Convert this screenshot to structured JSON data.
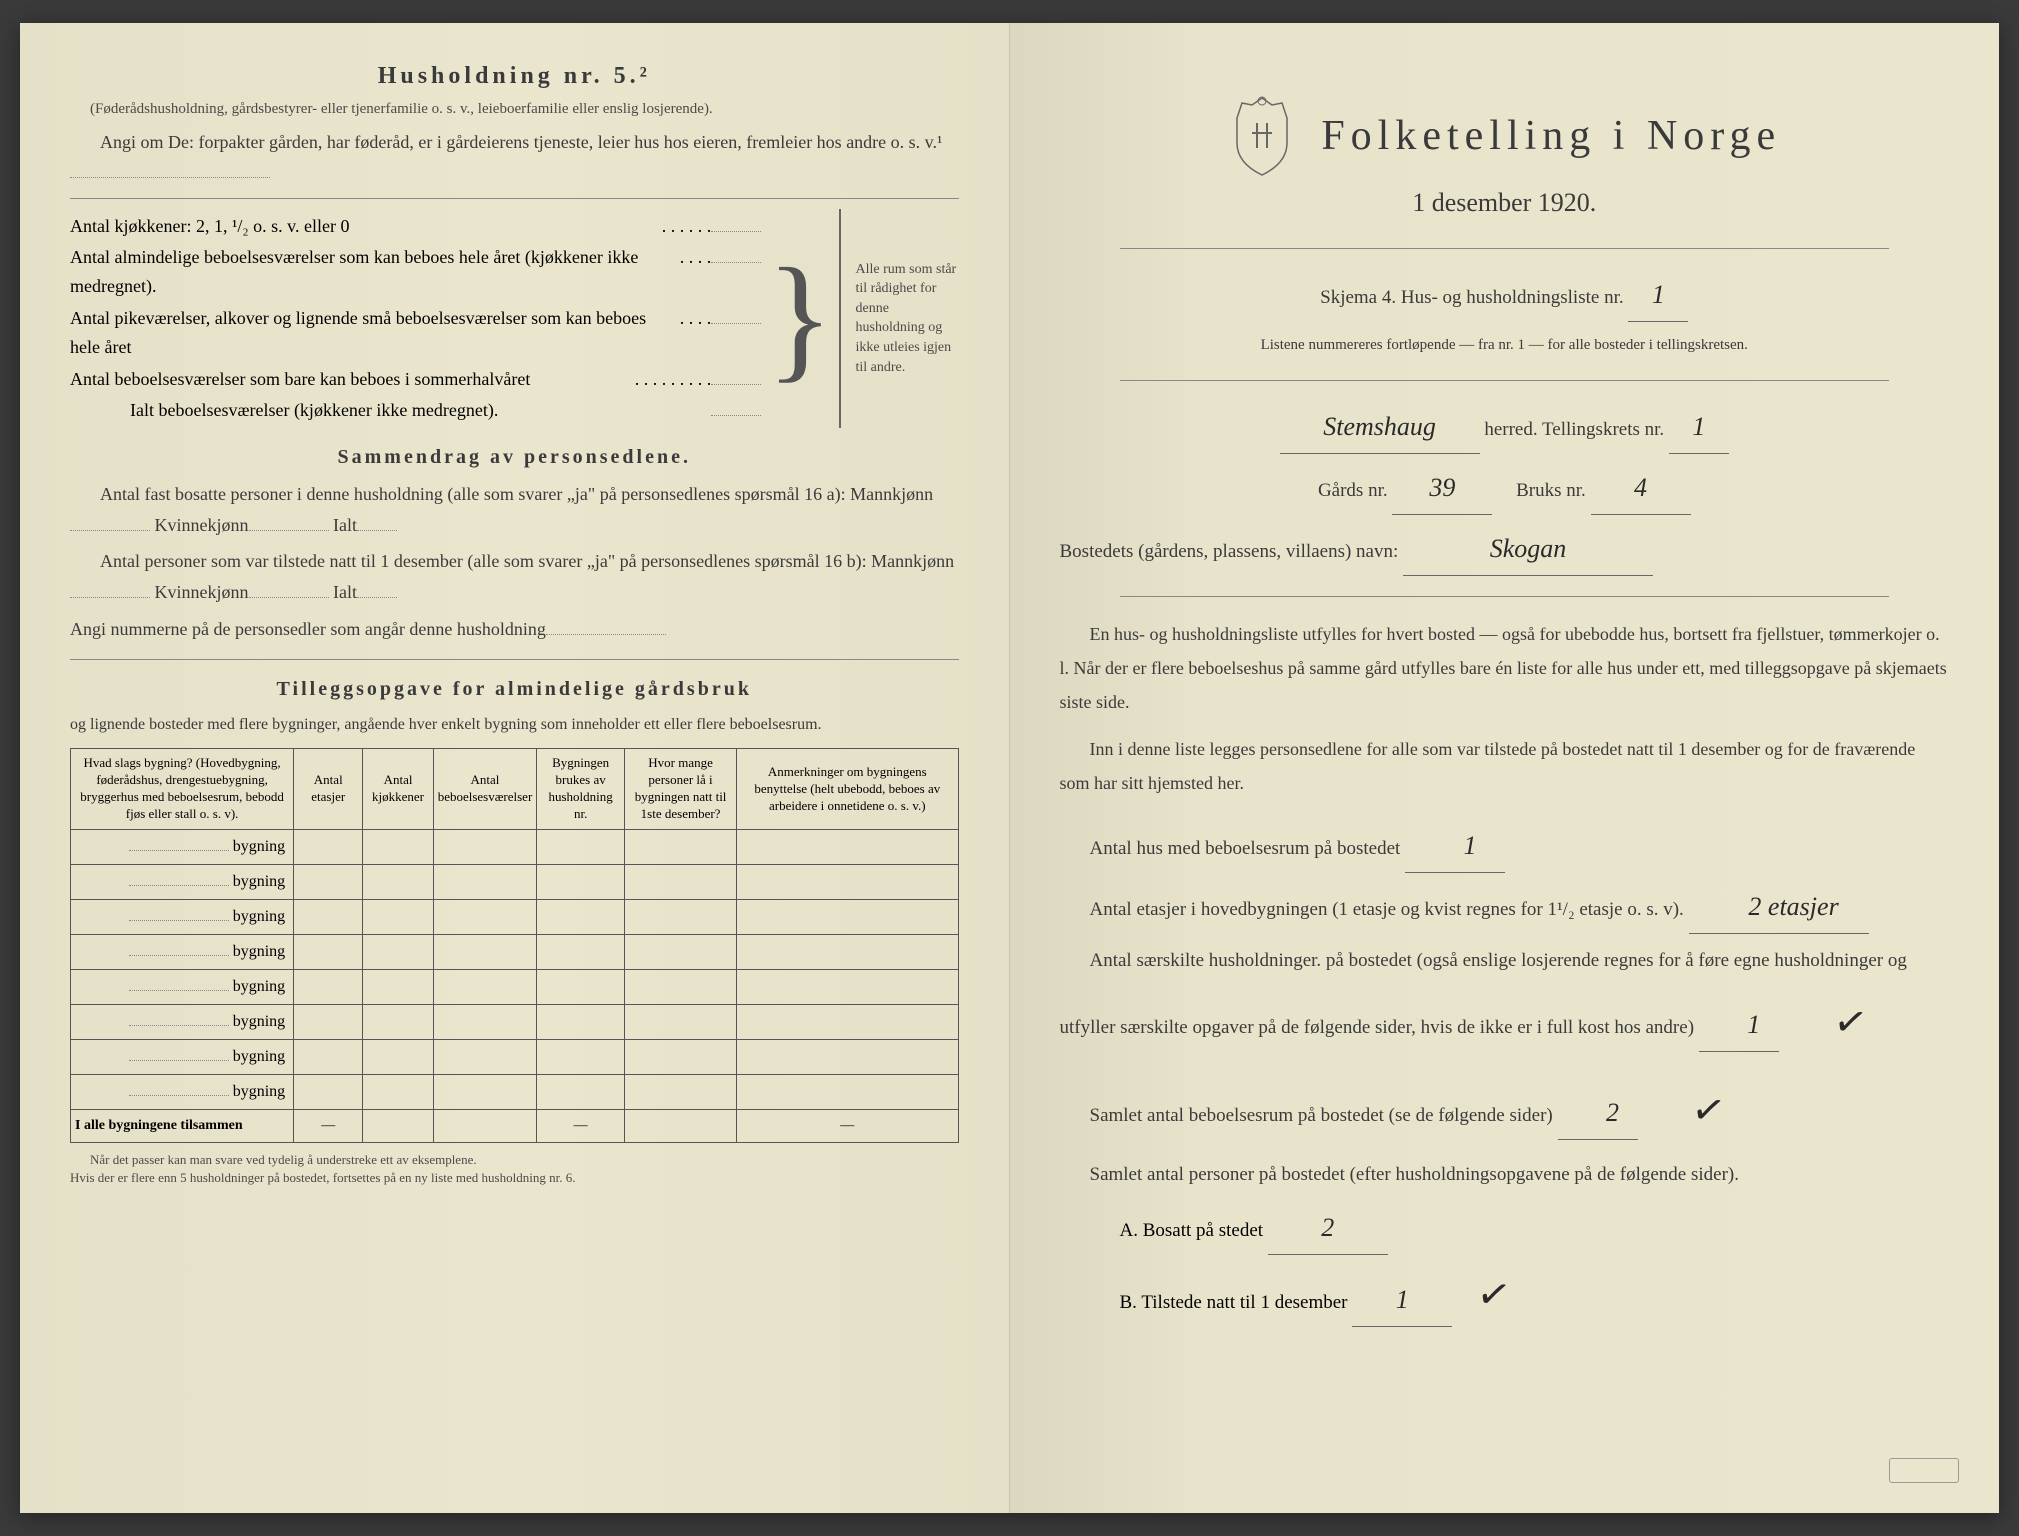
{
  "left_page": {
    "household_title": "Husholdning nr. 5.²",
    "household_note": "(Føderådshusholdning, gårdsbestyrer- eller tjenerfamilie o. s. v., leieboerfamilie eller enslig losjerende).",
    "household_instruction": "Angi om De: forpakter gården, har føderåd, er i gårdeierens tjeneste, leier hus hos eieren, fremleier hos andre o. s. v.¹",
    "kitchen_line": "Antal kjøkkener: 2, 1, ¹/₂ o. s. v. eller 0",
    "rooms_year": "Antal almindelige beboelsesværelser som kan beboes hele året (kjøkkener ikke medregnet).",
    "rooms_maid": "Antal pikeværelser, alkover og lignende små beboelsesværelser som kan beboes hele året",
    "rooms_summer": "Antal beboelsesværelser som bare kan beboes i sommerhalvåret",
    "rooms_total": "Ialt beboelsesværelser (kjøkkener ikke medregnet).",
    "bracket_note": "Alle rum som står til rådighet for denne husholdning og ikke utleies igjen til andre.",
    "summary_title": "Sammendrag av personsedlene.",
    "summary_line1": "Antal fast bosatte personer i denne husholdning (alle som svarer „ja\" på personsedlenes spørsmål 16 a): Mannkjønn",
    "summary_kvinne": "Kvinnekjønn",
    "summary_ialt": "Ialt",
    "summary_line2": "Antal personer som var tilstede natt til 1 desember (alle som svarer „ja\" på personsedlenes spørsmål 16 b): Mannkjønn",
    "summary_line3": "Angi nummerne på de personsedler som angår denne husholdning",
    "supplement_title": "Tilleggsopgave for almindelige gårdsbruk",
    "supplement_note": "og lignende bosteder med flere bygninger, angående hver enkelt bygning som inneholder ett eller flere beboelsesrum.",
    "table": {
      "headers": [
        "Hvad slags bygning?\n(Hovedbygning, føderådshus, drengestuebygning, bryggerhus med beboelsesrum, bebodd fjøs eller stall o. s. v).",
        "Antal etasjer",
        "Antal kjøkkener",
        "Antal beboelsesværelser",
        "Bygningen brukes av husholdning nr.",
        "Hvor mange personer lå i bygningen natt til 1ste desember?",
        "Anmerkninger om bygningens benyttelse (helt ubebodd, beboes av arbeidere i onnetidene o. s. v.)"
      ],
      "row_label": "bygning",
      "row_count": 8,
      "footer_row": "I alle bygningene tilsammen",
      "footnote": "Når det passer kan man svare ved tydelig å understreke ett av eksemplene.\nHvis der er flere enn 5 husholdninger på bostedet, fortsettes på en ny liste med husholdning nr. 6."
    }
  },
  "right_page": {
    "main_title": "Folketelling i Norge",
    "subtitle": "1 desember 1920.",
    "form_label": "Skjema 4.  Hus- og husholdningsliste nr.",
    "form_nr": "1",
    "form_note": "Listene nummereres fortløpende — fra nr. 1 — for alle bosteder i tellingskretsen.",
    "herred_value": "Stemshaug",
    "herred_label": "herred.  Tellingskrets nr.",
    "krets_nr": "1",
    "gards_label": "Gårds nr.",
    "gards_nr": "39",
    "bruks_label": "Bruks nr.",
    "bruks_nr": "4",
    "bosted_label": "Bostedets (gårdens, plassens, villaens) navn:",
    "bosted_value": "Skogan",
    "paragraph1": "En hus- og husholdningsliste utfylles for hvert bosted — også for ubebodde hus, bortsett fra fjellstuer, tømmerkojer o. l.  Når der er flere beboelseshus på samme gård utfylles bare én liste for alle hus under ett, med tilleggsopgave på skjemaets siste side.",
    "paragraph2": "Inn i denne liste legges personsedlene for alle som var tilstede på bostedet natt til 1 desember og for de fraværende som har sitt hjemsted her.",
    "q1_label": "Antal hus med beboelsesrum på bostedet",
    "q1_value": "1",
    "q2_label": "Antal etasjer i hovedbygningen (1 etasje og kvist regnes for 1¹/₂ etasje o. s. v).",
    "q2_value": "2 etasjer",
    "q3_label": "Antal særskilte husholdninger. på bostedet (også enslige losjerende regnes for å føre egne husholdninger og utfyller særskilte opgaver på de følgende sider, hvis de ikke er i full kost hos andre)",
    "q3_value": "1",
    "q4_label": "Samlet antal beboelsesrum på bostedet (se de følgende sider)",
    "q4_value": "2",
    "q5_label": "Samlet antal personer på bostedet (efter husholdningsopgavene på de følgende sider).",
    "qa_label": "A.  Bosatt på stedet",
    "qa_value": "2",
    "qb_label": "B.  Tilstede natt til 1 desember",
    "qb_value": "1"
  }
}
